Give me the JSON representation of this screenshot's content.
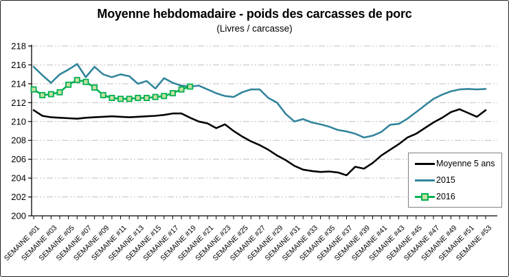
{
  "figure": {
    "title": "Moyenne hebdomadaire - poids des carcasses de porc",
    "subtitle": "(Livres / carcasse)"
  },
  "legend": {
    "position": "inside-lower-right",
    "items": [
      {
        "label": "Moyenne 5 ans",
        "color": "#000000",
        "marker": "none"
      },
      {
        "label": "2015",
        "color": "#31859C",
        "marker": "none"
      },
      {
        "label": "2016",
        "color": "#00B050",
        "marker": "square",
        "marker_fill": "#C6E0A2"
      }
    ]
  },
  "chart_data": {
    "type": "line",
    "title": "Moyenne hebdomadaire - poids des carcasses de porc",
    "subtitle": "(Livres / carcasse)",
    "xlabel": "",
    "ylabel": "",
    "ylim": [
      200,
      218
    ],
    "y_ticks": [
      200,
      202,
      204,
      206,
      208,
      210,
      212,
      214,
      216,
      218
    ],
    "n_categories": 53,
    "x_tick_labels": [
      "SEMAINE #01",
      "SEMAINE #03",
      "SEMAINE #05",
      "SEMAINE #07",
      "SEMAINE #09",
      "SEMAINE #11",
      "SEMAINE #13",
      "SEMAINE #15",
      "SEMAINE #17",
      "SEMAINE #19",
      "SEMAINE #21",
      "SEMAINE #23",
      "SEMAINE #25",
      "SEMAINE #27",
      "SEMAINE #29",
      "SEMAINE #31",
      "SEMAINE #33",
      "SEMAINE #35",
      "SEMAINE #37",
      "SEMAINE #39",
      "SEMAINE #41",
      "SEMAINE #43",
      "SEMAINE #45",
      "SEMAINE #47",
      "SEMAINE #49",
      "SEMAINE #51",
      "SEMAINE #53"
    ],
    "grid": "horizontal, gray dash-dot",
    "legend_position": "inside lower-right box",
    "series": [
      {
        "name": "Moyenne 5 ans",
        "color": "#000000",
        "marker": "none",
        "start_week": 1,
        "values": [
          211.2,
          210.6,
          210.45,
          210.4,
          210.35,
          210.3,
          210.4,
          210.45,
          210.5,
          210.55,
          210.5,
          210.45,
          210.5,
          210.55,
          210.6,
          210.7,
          210.85,
          210.85,
          210.4,
          210.0,
          209.8,
          209.3,
          209.7,
          209.0,
          208.4,
          207.9,
          207.5,
          207.0,
          206.4,
          205.9,
          205.3,
          204.9,
          204.75,
          204.65,
          204.7,
          204.6,
          204.3,
          205.2,
          205.0,
          205.6,
          206.4,
          207.0,
          207.6,
          208.3,
          208.7,
          209.3,
          209.9,
          210.4,
          211.0,
          211.3,
          210.9,
          210.5,
          211.2
        ]
      },
      {
        "name": "2015",
        "color": "#31859C",
        "marker": "none",
        "start_week": 1,
        "values": [
          215.8,
          214.9,
          214.1,
          215.0,
          215.5,
          216.1,
          214.7,
          215.8,
          215.0,
          214.7,
          215.0,
          214.8,
          214.0,
          214.3,
          213.5,
          214.6,
          214.1,
          213.8,
          213.7,
          213.8,
          213.4,
          213.0,
          212.7,
          212.6,
          213.1,
          213.4,
          213.4,
          212.5,
          212.0,
          210.8,
          210.0,
          210.25,
          209.9,
          209.7,
          209.45,
          209.1,
          208.95,
          208.7,
          208.3,
          208.5,
          208.9,
          209.65,
          209.75,
          210.3,
          211.0,
          211.7,
          212.4,
          212.85,
          213.2,
          213.4,
          213.45,
          213.4,
          213.45
        ]
      },
      {
        "name": "2016",
        "color": "#00B050",
        "marker": "square",
        "marker_fill": "#C6E0A2",
        "start_week": 1,
        "values": [
          213.4,
          212.8,
          212.9,
          213.1,
          213.9,
          214.4,
          214.2,
          213.6,
          212.8,
          212.5,
          212.4,
          212.4,
          212.5,
          212.5,
          212.6,
          212.7,
          213.0,
          213.4,
          213.7
        ]
      }
    ]
  },
  "style": {
    "grid_color": "#BFBFBF",
    "axis_color": "#000000",
    "background": "#FFFFFF"
  }
}
